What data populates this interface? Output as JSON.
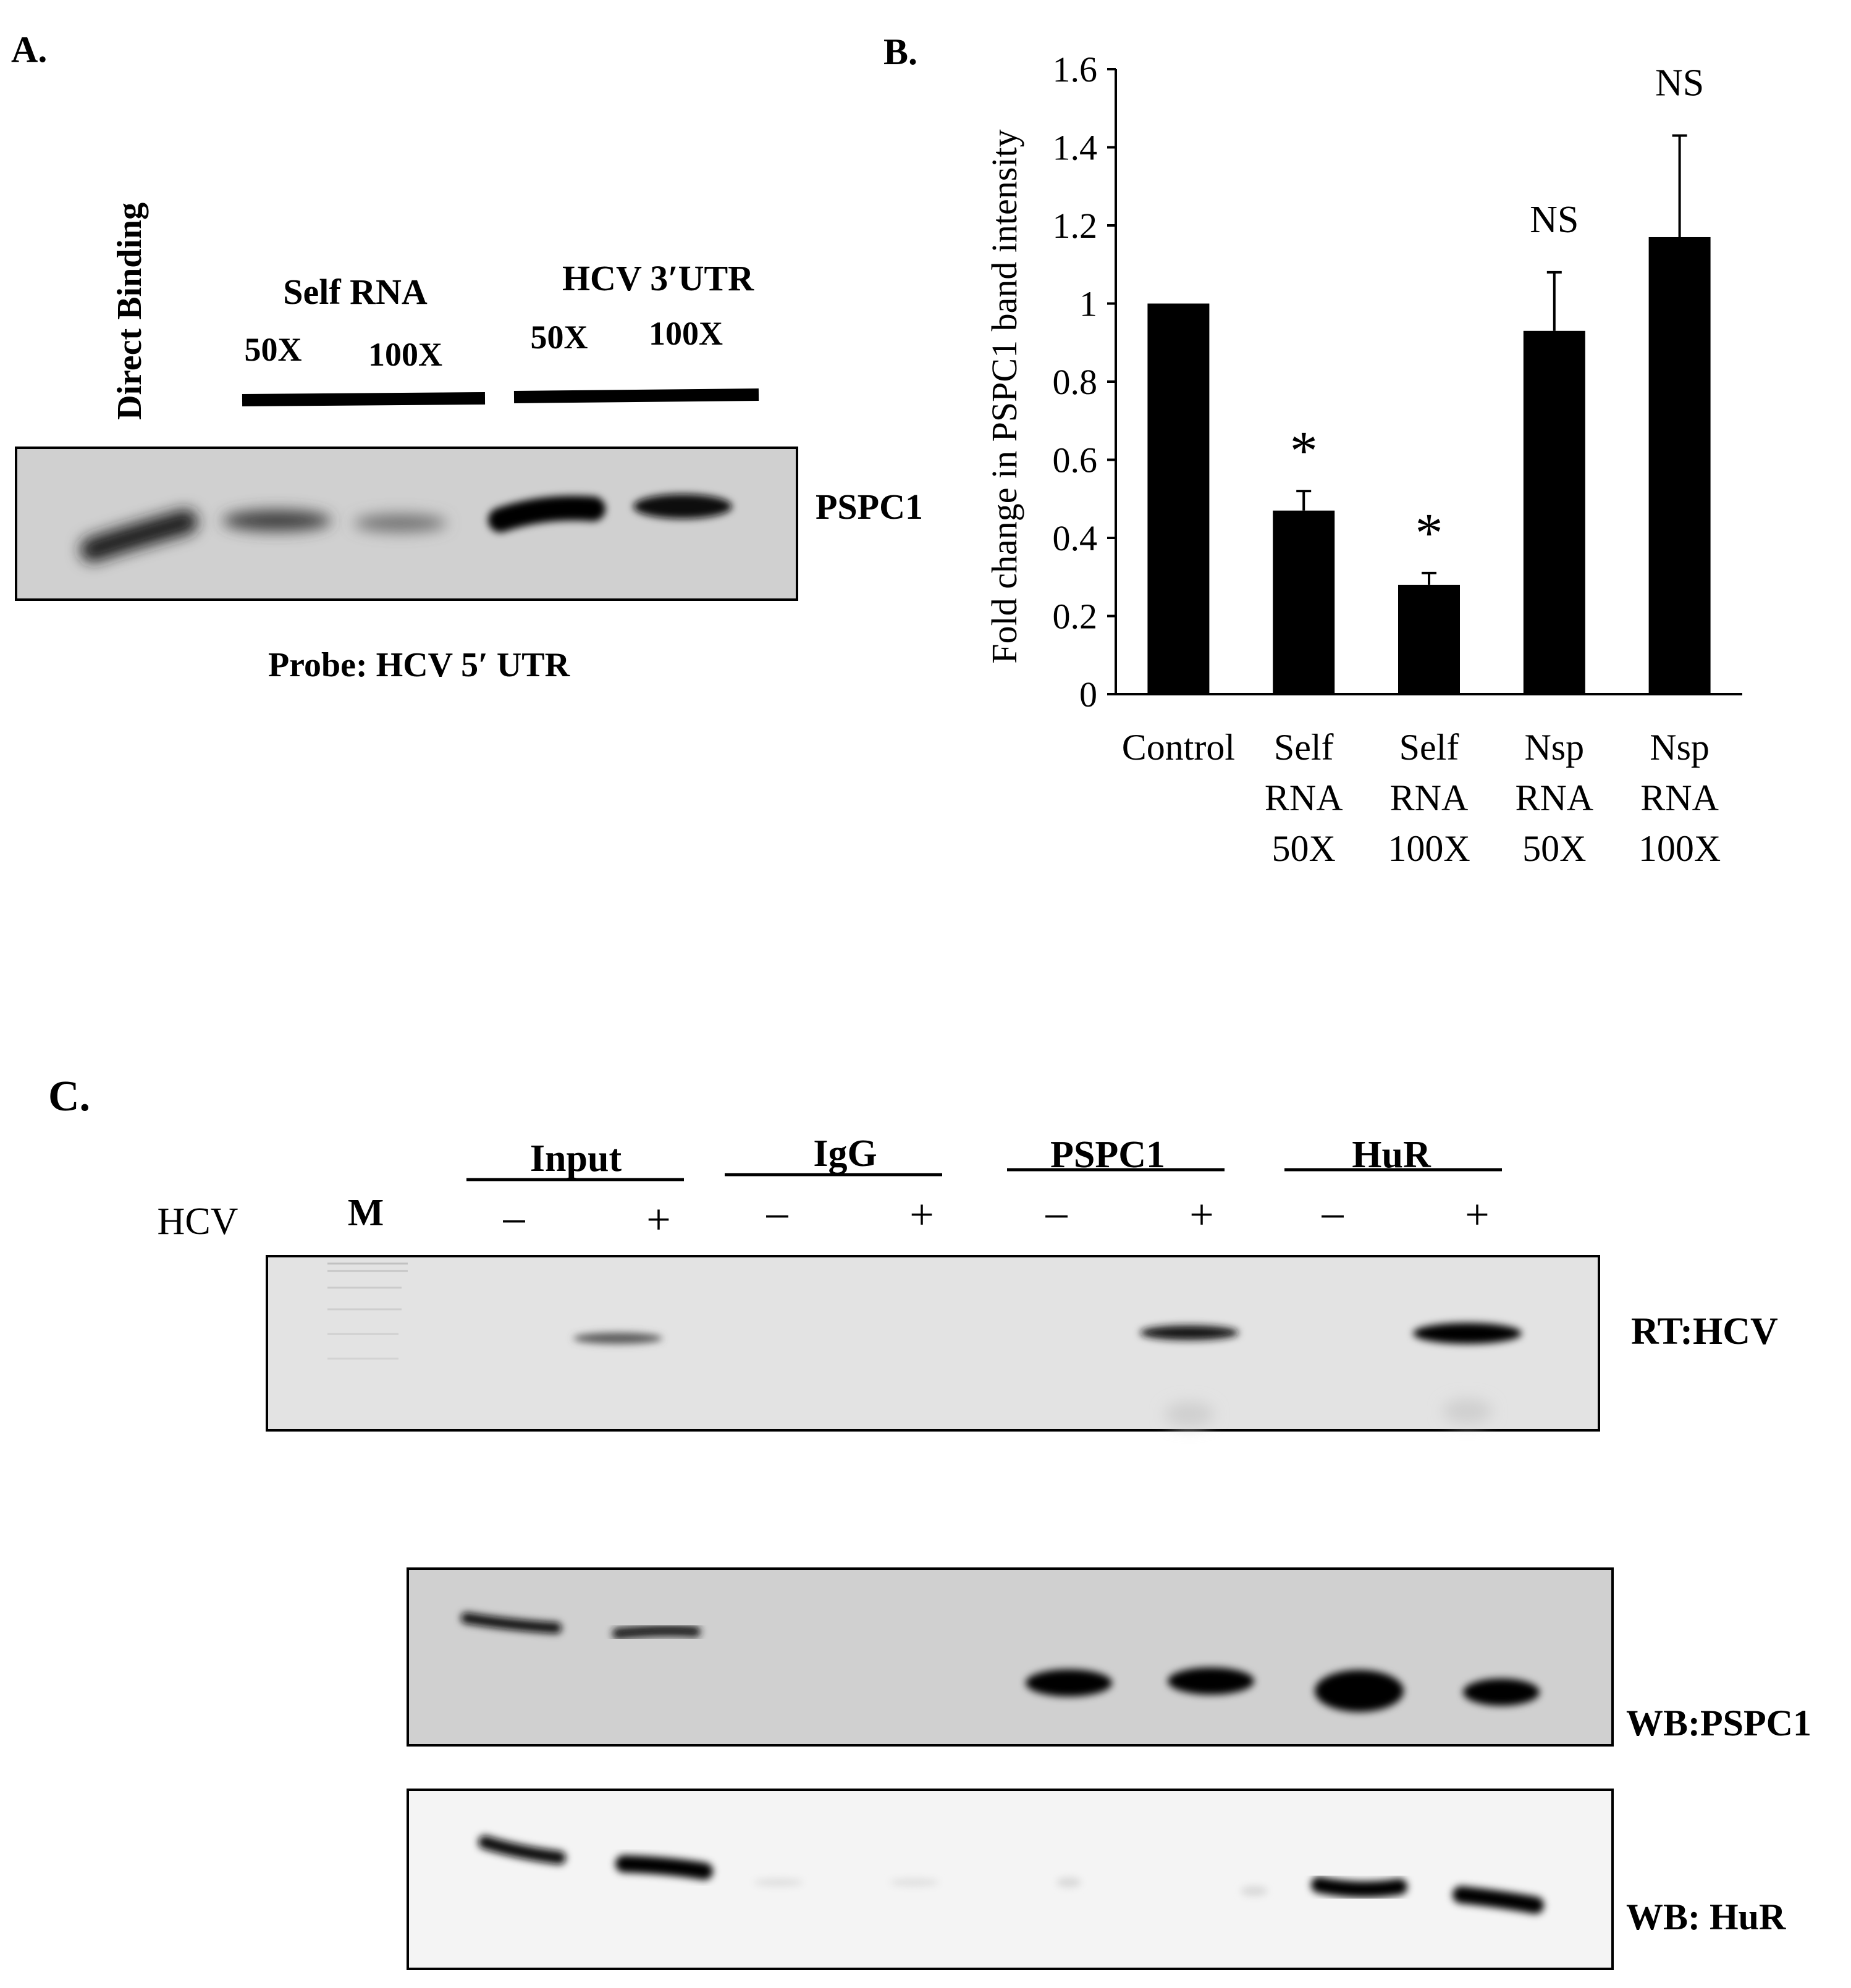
{
  "panel_a": {
    "label": "A.",
    "lane1_label": "Direct Binding",
    "group1": {
      "label": "Self RNA",
      "conc1": "50X",
      "conc2": "100X"
    },
    "group2": {
      "label": "HCV 3′UTR",
      "conc1": "50X",
      "conc2": "100X"
    },
    "blot_label": "PSPC1",
    "probe_label": "Probe: HCV 5′ UTR"
  },
  "panel_b": {
    "label": "B."
  },
  "chart_data": {
    "type": "bar",
    "ylabel": "Fold change in PSPC1 band intensity",
    "ylim": [
      0,
      1.6
    ],
    "yticks": [
      "0",
      "0.2",
      "0.4",
      "0.6",
      "0.8",
      "1",
      "1.2",
      "1.4",
      "1.6"
    ],
    "categories": [
      [
        "Control"
      ],
      [
        "Self",
        "RNA",
        "50X"
      ],
      [
        "Self",
        "RNA",
        "100X"
      ],
      [
        "Nsp",
        "RNA",
        "50X"
      ],
      [
        "Nsp",
        "RNA",
        "100X"
      ]
    ],
    "values": [
      1.0,
      0.47,
      0.28,
      0.93,
      1.17
    ],
    "errors": [
      0.0,
      0.05,
      0.03,
      0.15,
      0.26
    ],
    "annotations": [
      "",
      "*",
      "*",
      "NS",
      "NS"
    ],
    "bar_color": "#000000",
    "grid": false
  },
  "panel_c": {
    "label": "C.",
    "row_label": "HCV",
    "marker": "M",
    "groups": [
      "Input",
      "IgG",
      "PSPC1",
      "HuR"
    ],
    "signs": [
      "–",
      "+",
      "–",
      "+",
      "–",
      "+",
      "–",
      "+"
    ],
    "blot_labels": [
      "RT:HCV",
      "WB:PSPC1",
      "WB: HuR"
    ]
  }
}
